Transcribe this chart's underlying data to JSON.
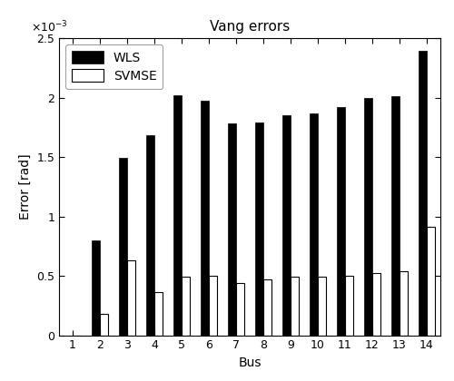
{
  "title": "Vang errors",
  "xlabel": "Bus",
  "ylabel": "Error [rad]",
  "buses": [
    1,
    2,
    3,
    4,
    5,
    6,
    7,
    8,
    9,
    10,
    11,
    12,
    13,
    14
  ],
  "wls_values": [
    0.0,
    0.0008,
    0.00149,
    0.00168,
    0.00202,
    0.00197,
    0.00178,
    0.00179,
    0.00185,
    0.00187,
    0.00192,
    0.002,
    0.00201,
    0.00239
  ],
  "svmse_values": [
    0.0,
    0.00018,
    0.00063,
    0.00036,
    0.00049,
    0.0005,
    0.00044,
    0.00047,
    0.00049,
    0.00049,
    0.0005,
    0.00052,
    0.00054,
    0.00091
  ],
  "wls_color": "#000000",
  "svmse_color": "#ffffff",
  "svmse_edgecolor": "#000000",
  "ylim": [
    0,
    0.0025
  ],
  "yticks": [
    0,
    0.0005,
    0.001,
    0.0015,
    0.002,
    0.0025
  ],
  "ytick_labels": [
    "0",
    "0.5",
    "1",
    "1.5",
    "2",
    "2.5"
  ],
  "bar_width": 0.3,
  "legend_labels": [
    "WLS",
    "SVMSE"
  ],
  "figsize": [
    5.0,
    4.2
  ],
  "dpi": 100
}
